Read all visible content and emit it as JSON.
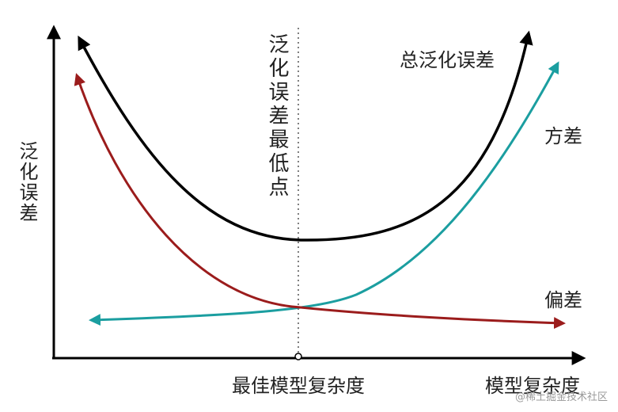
{
  "axes": {
    "y_label": "泛化误差",
    "x_label": "模型复杂度"
  },
  "annotations": {
    "optimum_label": "最佳模型复杂度",
    "minimum_label": "泛化误差最低点"
  },
  "curves": {
    "total": "总泛化误差",
    "variance": "方差",
    "bias": "偏差"
  },
  "watermark": "@稀土掘金技术社区"
}
